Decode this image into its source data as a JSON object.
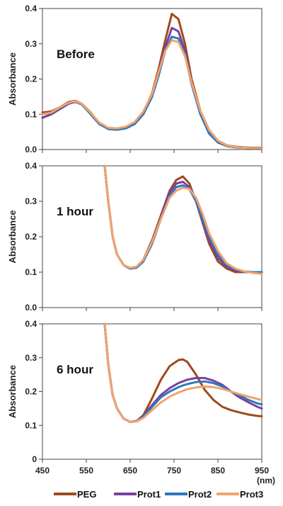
{
  "chart_data": [
    {
      "type": "line",
      "title": "Before",
      "ylabel": "Absorbance",
      "xlim": [
        450,
        950
      ],
      "ylim": [
        0,
        0.4
      ],
      "yticks": [
        "0.0",
        "0.1",
        "0.2",
        "0.3",
        "0.4"
      ],
      "grid": false,
      "series": [
        {
          "name": "PEG",
          "color": "#9e4a1e",
          "x": [
            450,
            470,
            490,
            510,
            525,
            540,
            560,
            580,
            600,
            620,
            640,
            660,
            680,
            700,
            715,
            730,
            745,
            760,
            775,
            790,
            810,
            830,
            850,
            870,
            890,
            910,
            930,
            950
          ],
          "y": [
            0.105,
            0.108,
            0.12,
            0.135,
            0.138,
            0.13,
            0.105,
            0.075,
            0.06,
            0.058,
            0.063,
            0.075,
            0.105,
            0.16,
            0.23,
            0.31,
            0.385,
            0.37,
            0.3,
            0.2,
            0.11,
            0.055,
            0.025,
            0.012,
            0.008,
            0.006,
            0.005,
            0.005
          ]
        },
        {
          "name": "Prot1",
          "color": "#7b3fa0",
          "x": [
            450,
            470,
            490,
            510,
            525,
            540,
            560,
            580,
            600,
            620,
            640,
            660,
            680,
            700,
            715,
            730,
            745,
            760,
            775,
            790,
            810,
            830,
            850,
            870,
            890,
            910,
            930,
            950
          ],
          "y": [
            0.09,
            0.1,
            0.115,
            0.13,
            0.135,
            0.128,
            0.1,
            0.072,
            0.06,
            0.058,
            0.062,
            0.075,
            0.105,
            0.155,
            0.22,
            0.29,
            0.345,
            0.335,
            0.28,
            0.19,
            0.105,
            0.05,
            0.022,
            0.01,
            0.006,
            0.005,
            0.004,
            0.004
          ]
        },
        {
          "name": "Prot2",
          "color": "#2e78bd",
          "x": [
            450,
            470,
            490,
            510,
            525,
            540,
            560,
            580,
            600,
            620,
            640,
            660,
            680,
            700,
            715,
            730,
            745,
            760,
            775,
            790,
            810,
            830,
            850,
            870,
            890,
            910,
            930,
            950
          ],
          "y": [
            0.1,
            0.104,
            0.118,
            0.132,
            0.136,
            0.128,
            0.1,
            0.072,
            0.058,
            0.056,
            0.06,
            0.072,
            0.1,
            0.15,
            0.21,
            0.28,
            0.32,
            0.315,
            0.27,
            0.185,
            0.1,
            0.045,
            0.02,
            0.01,
            0.006,
            0.005,
            0.004,
            0.004
          ]
        },
        {
          "name": "Prot3",
          "color": "#f2a36b",
          "x": [
            450,
            470,
            490,
            510,
            525,
            540,
            560,
            580,
            600,
            620,
            640,
            660,
            680,
            700,
            715,
            730,
            745,
            760,
            775,
            790,
            810,
            830,
            850,
            870,
            890,
            910,
            930,
            950
          ],
          "y": [
            0.1,
            0.105,
            0.12,
            0.133,
            0.137,
            0.13,
            0.104,
            0.076,
            0.062,
            0.06,
            0.065,
            0.078,
            0.108,
            0.158,
            0.22,
            0.28,
            0.31,
            0.305,
            0.265,
            0.19,
            0.11,
            0.055,
            0.025,
            0.012,
            0.007,
            0.005,
            0.004,
            0.004
          ]
        }
      ]
    },
    {
      "type": "line",
      "title": "1 hour",
      "ylabel": "Absorbance",
      "xlim": [
        450,
        950
      ],
      "ylim": [
        0,
        0.4
      ],
      "yticks": [
        "0.0",
        "0.1",
        "0.2",
        "0.3",
        "0.4"
      ],
      "grid": false,
      "series": [
        {
          "name": "PEG",
          "color": "#9e4a1e",
          "x": [
            592,
            600,
            610,
            620,
            635,
            650,
            665,
            680,
            700,
            720,
            740,
            755,
            770,
            785,
            800,
            815,
            830,
            850,
            870,
            890,
            910,
            930,
            950
          ],
          "y": [
            0.4,
            0.3,
            0.2,
            0.15,
            0.12,
            0.11,
            0.115,
            0.135,
            0.19,
            0.26,
            0.33,
            0.36,
            0.37,
            0.35,
            0.3,
            0.24,
            0.18,
            0.13,
            0.11,
            0.1,
            0.1,
            0.1,
            0.1
          ]
        },
        {
          "name": "Prot1",
          "color": "#7b3fa0",
          "x": [
            592,
            600,
            610,
            620,
            635,
            650,
            665,
            680,
            700,
            720,
            740,
            755,
            770,
            785,
            800,
            815,
            830,
            850,
            870,
            890,
            910,
            930,
            950
          ],
          "y": [
            0.4,
            0.3,
            0.2,
            0.15,
            0.12,
            0.11,
            0.113,
            0.132,
            0.185,
            0.255,
            0.325,
            0.35,
            0.355,
            0.34,
            0.3,
            0.245,
            0.19,
            0.14,
            0.115,
            0.105,
            0.1,
            0.1,
            0.1
          ]
        },
        {
          "name": "Prot2",
          "color": "#2e78bd",
          "x": [
            592,
            600,
            610,
            620,
            635,
            650,
            665,
            680,
            700,
            720,
            740,
            755,
            770,
            785,
            800,
            815,
            830,
            850,
            870,
            890,
            910,
            930,
            950
          ],
          "y": [
            0.4,
            0.3,
            0.2,
            0.15,
            0.12,
            0.11,
            0.113,
            0.13,
            0.18,
            0.25,
            0.315,
            0.34,
            0.345,
            0.335,
            0.3,
            0.25,
            0.2,
            0.15,
            0.12,
            0.108,
            0.102,
            0.1,
            0.1
          ]
        },
        {
          "name": "Prot3",
          "color": "#f2a36b",
          "x": [
            592,
            600,
            610,
            620,
            635,
            650,
            665,
            680,
            700,
            720,
            740,
            755,
            770,
            785,
            800,
            815,
            830,
            850,
            870,
            890,
            910,
            930,
            950
          ],
          "y": [
            0.4,
            0.3,
            0.2,
            0.15,
            0.12,
            0.112,
            0.116,
            0.135,
            0.185,
            0.25,
            0.31,
            0.33,
            0.338,
            0.335,
            0.31,
            0.265,
            0.21,
            0.16,
            0.125,
            0.11,
            0.102,
            0.098,
            0.095
          ]
        }
      ]
    },
    {
      "type": "line",
      "title": "6 hour",
      "ylabel": "Absorbance",
      "xlabel": "(nm)",
      "xlim": [
        450,
        950
      ],
      "ylim": [
        0,
        0.4
      ],
      "yticks": [
        "0",
        "0.1",
        "0.2",
        "0.3",
        "0.4"
      ],
      "xticks": [
        "450",
        "550",
        "650",
        "750",
        "850",
        "950"
      ],
      "grid": false,
      "series": [
        {
          "name": "PEG",
          "color": "#9e4a1e",
          "x": [
            592,
            600,
            610,
            620,
            635,
            650,
            665,
            680,
            700,
            720,
            740,
            760,
            770,
            780,
            800,
            820,
            840,
            860,
            880,
            900,
            920,
            940,
            950
          ],
          "y": [
            0.4,
            0.28,
            0.19,
            0.15,
            0.12,
            0.11,
            0.113,
            0.13,
            0.18,
            0.235,
            0.275,
            0.293,
            0.295,
            0.288,
            0.25,
            0.205,
            0.175,
            0.155,
            0.145,
            0.138,
            0.132,
            0.128,
            0.127
          ]
        },
        {
          "name": "Prot1",
          "color": "#7b3fa0",
          "x": [
            592,
            600,
            610,
            620,
            635,
            650,
            665,
            680,
            700,
            720,
            740,
            760,
            770,
            780,
            800,
            820,
            840,
            860,
            880,
            900,
            920,
            940,
            950
          ],
          "y": [
            0.4,
            0.28,
            0.19,
            0.15,
            0.12,
            0.11,
            0.113,
            0.128,
            0.16,
            0.19,
            0.21,
            0.225,
            0.23,
            0.235,
            0.24,
            0.24,
            0.232,
            0.22,
            0.2,
            0.182,
            0.168,
            0.155,
            0.15
          ]
        },
        {
          "name": "Prot2",
          "color": "#2e78bd",
          "x": [
            592,
            600,
            610,
            620,
            635,
            650,
            665,
            680,
            700,
            720,
            740,
            760,
            770,
            780,
            800,
            820,
            840,
            860,
            880,
            900,
            920,
            940,
            950
          ],
          "y": [
            0.4,
            0.28,
            0.19,
            0.15,
            0.12,
            0.11,
            0.112,
            0.125,
            0.155,
            0.183,
            0.2,
            0.213,
            0.218,
            0.222,
            0.228,
            0.23,
            0.225,
            0.215,
            0.2,
            0.188,
            0.175,
            0.165,
            0.162
          ]
        },
        {
          "name": "Prot3",
          "color": "#f2a36b",
          "x": [
            592,
            600,
            610,
            620,
            635,
            650,
            665,
            680,
            700,
            720,
            740,
            760,
            770,
            780,
            800,
            820,
            840,
            860,
            880,
            900,
            920,
            940,
            950
          ],
          "y": [
            0.4,
            0.28,
            0.19,
            0.15,
            0.12,
            0.11,
            0.112,
            0.122,
            0.145,
            0.168,
            0.185,
            0.197,
            0.202,
            0.207,
            0.212,
            0.215,
            0.213,
            0.208,
            0.2,
            0.192,
            0.185,
            0.178,
            0.175
          ]
        }
      ]
    }
  ],
  "legend": [
    {
      "name": "PEG",
      "color": "#9e4a1e"
    },
    {
      "name": "Prot1",
      "color": "#7b3fa0"
    },
    {
      "name": "Prot2",
      "color": "#2e78bd"
    },
    {
      "name": "Prot3",
      "color": "#f2a36b"
    }
  ]
}
